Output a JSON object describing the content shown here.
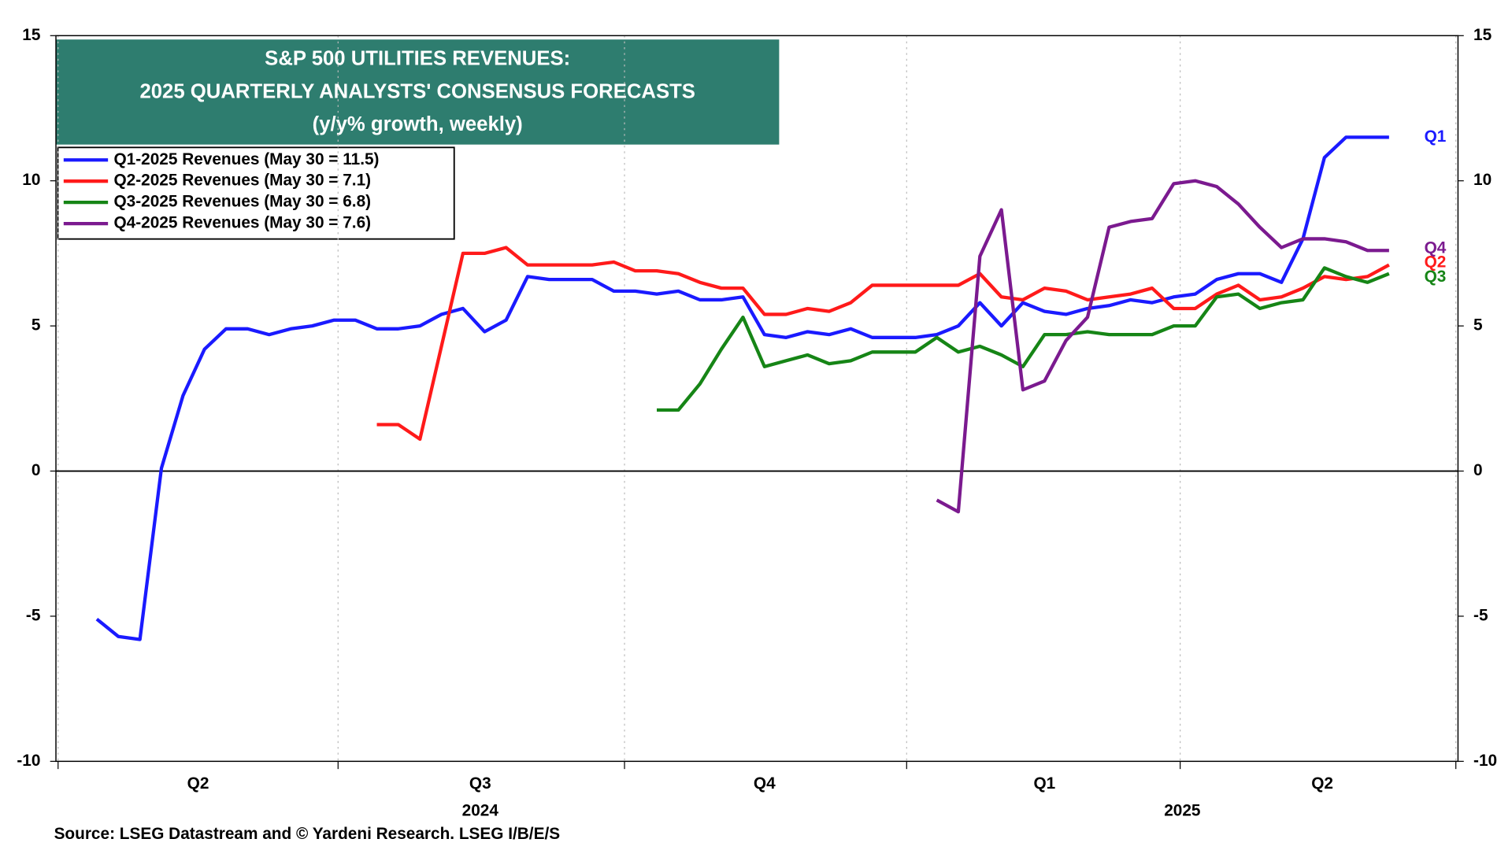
{
  "chart_data": {
    "type": "line",
    "title": "S&P 500 UTILITIES REVENUES:",
    "subtitle": "2025 QUARTERLY ANALYSTS' CONSENSUS FORECASTS",
    "subtitle2": "(y/y% growth, weekly)",
    "source": "Source: LSEG Datastream and © Yardeni Research. LSEG I/B/E/S",
    "x": [
      0,
      1,
      2,
      3,
      4,
      5,
      6,
      7,
      8,
      9,
      10,
      11,
      12,
      13,
      14,
      15,
      16,
      17,
      18,
      19,
      20,
      21,
      22,
      23,
      24,
      25,
      26,
      27,
      28,
      29,
      30,
      31,
      32,
      33,
      34,
      35,
      36,
      37,
      38,
      39,
      40,
      41,
      42,
      43,
      44,
      45,
      46,
      47,
      48,
      49,
      50,
      51,
      52,
      53,
      54,
      55,
      56,
      57,
      58,
      59,
      60
    ],
    "xlim": [
      -1.9,
      63.2
    ],
    "xticks": [
      {
        "value": 4.7,
        "label": "Q2"
      },
      {
        "value": 17.8,
        "label": "Q3"
      },
      {
        "value": 31,
        "label": "Q4"
      },
      {
        "value": 44,
        "label": "Q1"
      },
      {
        "value": 56.9,
        "label": "Q2"
      }
    ],
    "xyear_ticks": [
      {
        "value": 17.8,
        "label": "2024"
      },
      {
        "value": 50.4,
        "label": "2025"
      }
    ],
    "xgrid": [
      -1.8,
      11.2,
      24.5,
      37.6,
      50.3,
      63.1
    ],
    "ylim": [
      -10,
      15
    ],
    "yticks": [
      -10,
      -5,
      0,
      5,
      10,
      15
    ],
    "y2lim": [
      -10,
      15
    ],
    "y2ticks": [
      -10,
      -5,
      0,
      5,
      10,
      15
    ],
    "legend": "upper left",
    "series": [
      {
        "name": "Q1-2025 Revenues (May 30 = 11.5)",
        "end_label": "Q1",
        "color": "#1a1aff",
        "values": [
          -5.1,
          -5.7,
          -5.8,
          0.1,
          2.6,
          4.2,
          4.9,
          4.9,
          4.7,
          4.9,
          5.0,
          5.2,
          5.2,
          4.9,
          4.9,
          5.0,
          5.4,
          5.6,
          4.8,
          5.2,
          6.7,
          6.6,
          6.6,
          6.6,
          6.2,
          6.2,
          6.1,
          6.2,
          5.9,
          5.9,
          6.0,
          4.7,
          4.6,
          4.8,
          4.7,
          4.9,
          4.6,
          4.6,
          4.6,
          4.7,
          5.0,
          5.8,
          5.0,
          5.8,
          5.5,
          5.4,
          5.6,
          5.7,
          5.9,
          5.8,
          6.0,
          6.1,
          6.6,
          6.8,
          6.8,
          6.5,
          8.0,
          10.8,
          11.5,
          11.5,
          11.5
        ]
      },
      {
        "name": "Q2-2025 Revenues (May 30 = 7.1)",
        "end_label": "Q2",
        "color": "#ff1a1a",
        "values": [
          null,
          null,
          null,
          null,
          null,
          null,
          null,
          null,
          null,
          null,
          null,
          null,
          null,
          1.6,
          1.6,
          1.1,
          4.3,
          7.5,
          7.5,
          7.7,
          7.1,
          7.1,
          7.1,
          7.1,
          7.2,
          6.9,
          6.9,
          6.8,
          6.5,
          6.3,
          6.3,
          5.4,
          5.4,
          5.6,
          5.5,
          5.8,
          6.4,
          6.4,
          6.4,
          6.4,
          6.4,
          6.8,
          6.0,
          5.9,
          6.3,
          6.2,
          5.9,
          6.0,
          6.1,
          6.3,
          5.6,
          5.6,
          6.1,
          6.4,
          5.9,
          6.0,
          6.3,
          6.7,
          6.6,
          6.7,
          7.1
        ]
      },
      {
        "name": "Q3-2025 Revenues (May 30 = 6.8)",
        "end_label": "Q3",
        "color": "#168516",
        "values": [
          null,
          null,
          null,
          null,
          null,
          null,
          null,
          null,
          null,
          null,
          null,
          null,
          null,
          null,
          null,
          null,
          null,
          null,
          null,
          null,
          null,
          null,
          null,
          null,
          null,
          null,
          2.1,
          2.1,
          3.0,
          4.2,
          5.3,
          3.6,
          3.8,
          4.0,
          3.7,
          3.8,
          4.1,
          4.1,
          4.1,
          4.6,
          4.1,
          4.3,
          4.0,
          3.6,
          4.7,
          4.7,
          4.8,
          4.7,
          4.7,
          4.7,
          5.0,
          5.0,
          6.0,
          6.1,
          5.6,
          5.8,
          5.9,
          7.0,
          6.7,
          6.5,
          6.8
        ]
      },
      {
        "name": "Q4-2025 Revenues (May 30 = 7.6)",
        "end_label": "Q4",
        "color": "#7b1a8f",
        "values": [
          null,
          null,
          null,
          null,
          null,
          null,
          null,
          null,
          null,
          null,
          null,
          null,
          null,
          null,
          null,
          null,
          null,
          null,
          null,
          null,
          null,
          null,
          null,
          null,
          null,
          null,
          null,
          null,
          null,
          null,
          null,
          null,
          null,
          null,
          null,
          null,
          null,
          null,
          null,
          -1.0,
          -1.4,
          7.4,
          9.0,
          2.8,
          3.1,
          4.5,
          5.3,
          8.4,
          8.6,
          8.7,
          9.9,
          10.0,
          9.8,
          9.2,
          8.4,
          7.7,
          8.0,
          8.0,
          7.9,
          7.6,
          7.6
        ]
      }
    ]
  }
}
